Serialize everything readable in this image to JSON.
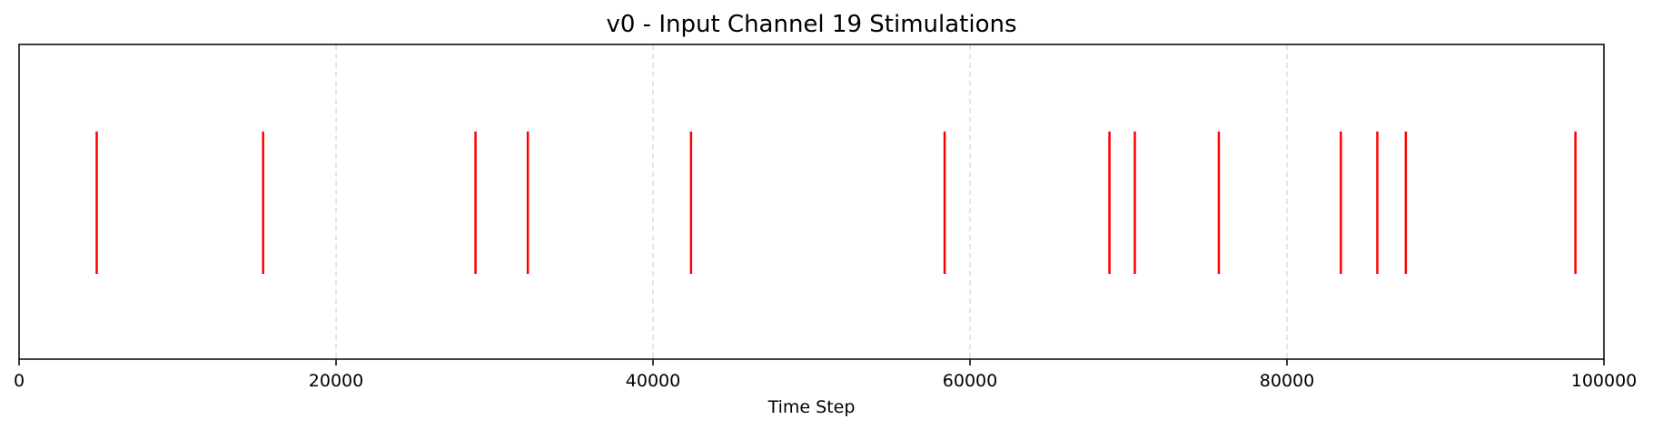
{
  "chart_data": {
    "type": "eventplot",
    "title": "v0 - Input Channel 19 Stimulations",
    "xlabel": "Time Step",
    "ylabel": "",
    "xlim": [
      0,
      100000
    ],
    "x_ticks": [
      0,
      20000,
      40000,
      60000,
      80000,
      100000
    ],
    "x_tick_labels": [
      "0",
      "20000",
      "40000",
      "60000",
      "80000",
      "100000"
    ],
    "y_ticks_visible": false,
    "grid": {
      "axis": "x",
      "style": "dashed",
      "color": "#cccccc"
    },
    "event_color": "#ff0000",
    "events": [
      4900,
      15400,
      28800,
      32100,
      42400,
      58400,
      68800,
      70400,
      75700,
      83400,
      85700,
      87500,
      98200
    ]
  }
}
